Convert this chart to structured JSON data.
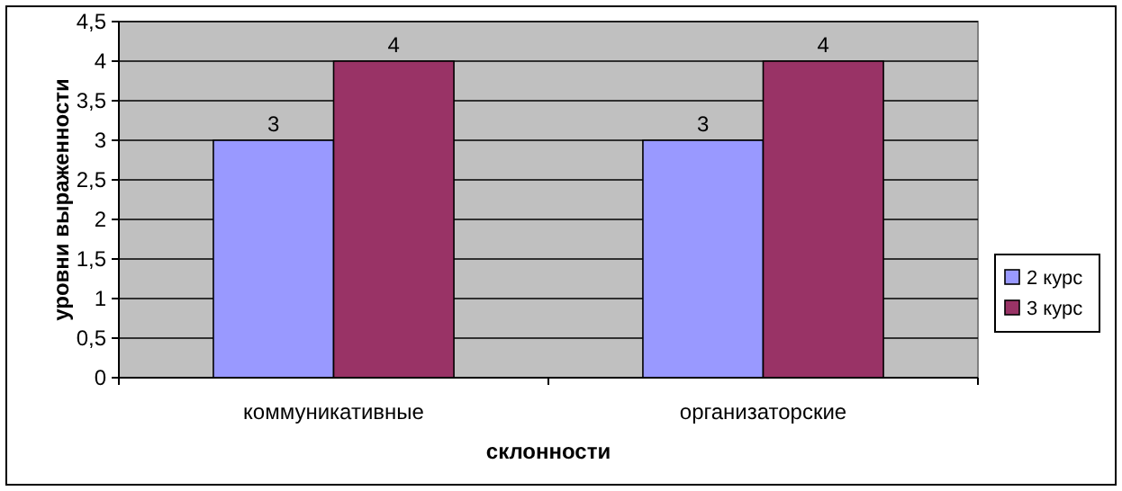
{
  "chart_data": {
    "type": "bar",
    "xlabel": "склонности",
    "ylabel": "уровни выраженности",
    "categories": [
      "коммуникативные",
      "организаторские"
    ],
    "series": [
      {
        "name": "2 курс",
        "color": "#9999ff",
        "values": [
          3,
          3
        ]
      },
      {
        "name": "3 курс",
        "color": "#993366",
        "values": [
          4,
          4
        ]
      }
    ],
    "ylim": [
      0,
      4.5
    ],
    "yticks": [
      0,
      {
        "value": 0.5,
        "label": "0,5"
      },
      1,
      {
        "value": 1.5,
        "label": "1,5"
      },
      2,
      {
        "value": 2.5,
        "label": "2,5"
      },
      3,
      {
        "value": 3.5,
        "label": "3,5"
      },
      4,
      {
        "value": 4.5,
        "label": "4,5"
      }
    ],
    "grid": "y",
    "legend": "right",
    "data_labels": true
  }
}
